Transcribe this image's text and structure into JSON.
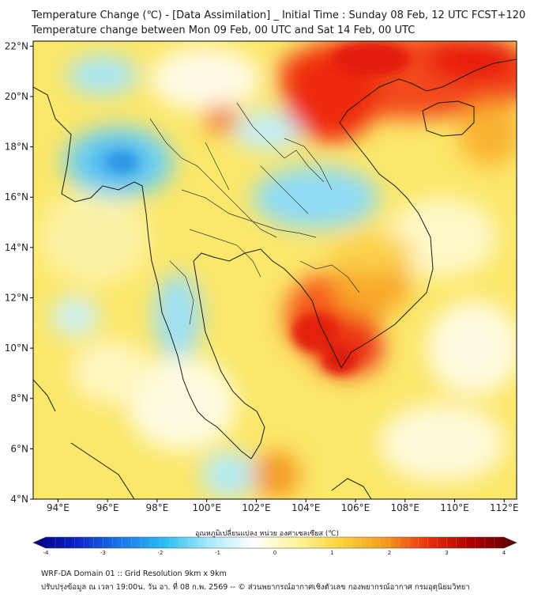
{
  "title": {
    "line1": "Temperature Change (℃) - [Data Assimilation] _ Initial Time : Sunday 08 Feb, 12 UTC FCST+120",
    "line2": "Temperature change between Mon 09 Feb, 00 UTC and Sat 14 Feb, 00 UTC"
  },
  "map": {
    "lat_labels": [
      "22°N",
      "20°N",
      "18°N",
      "16°N",
      "14°N",
      "12°N",
      "10°N",
      "8°N",
      "6°N",
      "4°N"
    ],
    "lon_labels": [
      "94°E",
      "96°E",
      "98°E",
      "100°E",
      "102°E",
      "104°E",
      "106°E",
      "108°E",
      "110°E",
      "112°E"
    ],
    "lat_values": [
      22,
      20,
      18,
      16,
      14,
      12,
      10,
      8,
      6,
      4
    ],
    "lon_values": [
      94,
      96,
      98,
      100,
      102,
      104,
      106,
      108,
      110,
      112
    ],
    "bounds": {
      "lon_min": 93.0,
      "lon_max": 112.5,
      "lat_min": 4.0,
      "lat_max": 22.2
    }
  },
  "colorbar": {
    "title": "อุณหภูมิเปลี่ยนแปลง หน่วย องศาเซลเซียส (℃)",
    "ticks": [
      "-4",
      "-3",
      "-2",
      "-1",
      "0",
      "1",
      "2",
      "3",
      "4"
    ],
    "min": -4,
    "max": 4,
    "colors": [
      "#05007a",
      "#0b26c8",
      "#1a78e8",
      "#29bdf0",
      "#a9e9fa",
      "#ffffff",
      "#fff59a",
      "#fbd23a",
      "#f59b20",
      "#e8300d",
      "#a80000",
      "#5a0000"
    ]
  },
  "footer": {
    "line1": "WRF-DA Domain 01 :: Grid Resolution 9km x 9km",
    "line2": "ปรับปรุงข้อมูล ณ เวลา 19:00น. วัน อา. ที่ 08 ก.พ. 2569 -- © ส่วนพยากรณ์อากาศเชิงตัวเลข กองพยากรณ์อากาศ กรมอุตุนิยมวิทยา"
  }
}
